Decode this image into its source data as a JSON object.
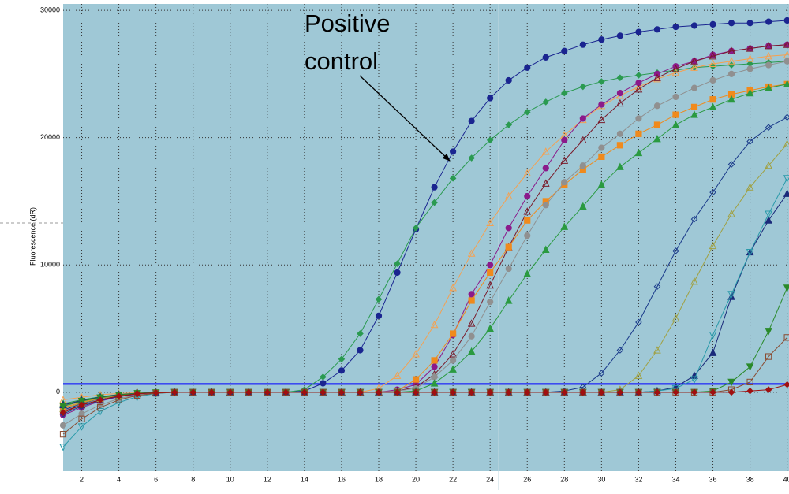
{
  "chart_data": {
    "type": "line",
    "ylabel": "Fluorescence (dR)",
    "annotation": [
      "Positive",
      "control"
    ],
    "x": [
      1,
      2,
      3,
      4,
      5,
      6,
      7,
      8,
      9,
      10,
      11,
      12,
      13,
      14,
      15,
      16,
      17,
      18,
      19,
      20,
      21,
      22,
      23,
      24,
      25,
      26,
      27,
      28,
      29,
      30,
      31,
      32,
      33,
      34,
      35,
      36,
      37,
      38,
      39,
      40
    ],
    "xlim": [
      1,
      40.1
    ],
    "xticks": [
      2,
      4,
      6,
      8,
      10,
      12,
      14,
      16,
      18,
      20,
      22,
      24,
      26,
      28,
      30,
      32,
      34,
      36,
      38,
      40
    ],
    "ylim": [
      -6200,
      30500
    ],
    "yticks": [
      0,
      10000,
      20000,
      30000
    ],
    "grid": true,
    "threshold": 650,
    "threshold_color": "#0000ff",
    "series": [
      {
        "color": "#1a2590",
        "marker": "circle",
        "filled": true,
        "values": [
          -1400,
          -900,
          -500,
          -250,
          -100,
          -30,
          0,
          0,
          0,
          0,
          0,
          0,
          0,
          100,
          700,
          1700,
          3300,
          6000,
          9400,
          12800,
          16100,
          18900,
          21300,
          23100,
          24500,
          25500,
          26300,
          26800,
          27300,
          27700,
          28000,
          28300,
          28500,
          28700,
          28800,
          28900,
          29000,
          29000,
          29100,
          29200
        ]
      },
      {
        "color": "#2a9a50",
        "marker": "diamond",
        "filled": true,
        "values": [
          -1000,
          -700,
          -400,
          -200,
          -80,
          -20,
          0,
          0,
          0,
          0,
          0,
          0,
          0,
          200,
          1200,
          2600,
          4600,
          7300,
          10100,
          12900,
          14900,
          16800,
          18400,
          19800,
          21000,
          22000,
          22800,
          23500,
          24000,
          24400,
          24700,
          24900,
          25100,
          25300,
          25500,
          25600,
          25700,
          25800,
          25900,
          26000
        ]
      },
      {
        "color": "#f5a050",
        "marker": "triangle",
        "filled": false,
        "values": [
          -600,
          -400,
          -200,
          -100,
          -40,
          0,
          0,
          0,
          0,
          0,
          0,
          0,
          0,
          0,
          0,
          0,
          0,
          300,
          1300,
          3000,
          5300,
          8200,
          10900,
          13300,
          15400,
          17200,
          18900,
          20200,
          21400,
          22500,
          23300,
          24000,
          24600,
          25100,
          25500,
          25800,
          26000,
          26200,
          26400,
          26500
        ]
      },
      {
        "color": "#8b1a8b",
        "marker": "circle",
        "filled": true,
        "values": [
          -1800,
          -1200,
          -700,
          -350,
          -150,
          -50,
          0,
          0,
          0,
          0,
          0,
          0,
          0,
          0,
          0,
          0,
          0,
          0,
          200,
          600,
          2000,
          4500,
          7700,
          10000,
          12900,
          15400,
          17600,
          19800,
          21500,
          22600,
          23500,
          24300,
          25000,
          25600,
          26000,
          26500,
          26800,
          27000,
          27200,
          27300
        ]
      },
      {
        "color": "#7a1a2a",
        "marker": "triangle",
        "filled": false,
        "values": [
          -1500,
          -1000,
          -600,
          -300,
          -120,
          -40,
          0,
          0,
          0,
          0,
          0,
          0,
          0,
          0,
          0,
          0,
          0,
          0,
          100,
          400,
          1400,
          3000,
          5400,
          8400,
          11400,
          14200,
          16400,
          18200,
          19800,
          21400,
          22700,
          23800,
          24700,
          25400,
          26000,
          26400,
          26800,
          27000,
          27200,
          27300
        ]
      },
      {
        "color": "#f08a1c",
        "marker": "square",
        "filled": true,
        "values": [
          -1200,
          -800,
          -450,
          -220,
          -90,
          -30,
          0,
          0,
          0,
          0,
          0,
          0,
          0,
          0,
          0,
          0,
          0,
          0,
          100,
          1000,
          2500,
          4600,
          7200,
          9400,
          11400,
          13500,
          15000,
          16300,
          17500,
          18500,
          19400,
          20300,
          21000,
          21800,
          22400,
          23000,
          23400,
          23700,
          24000,
          24200
        ]
      },
      {
        "color": "#909090",
        "marker": "circle",
        "filled": true,
        "values": [
          -2600,
          -1700,
          -1000,
          -500,
          -200,
          -60,
          0,
          0,
          0,
          0,
          0,
          0,
          0,
          0,
          0,
          0,
          0,
          0,
          100,
          300,
          1200,
          2500,
          4400,
          7100,
          9700,
          12300,
          14700,
          16500,
          17800,
          19200,
          20300,
          21500,
          22500,
          23200,
          23900,
          24500,
          25000,
          25400,
          25700,
          26000
        ]
      },
      {
        "color": "#2a9a40",
        "marker": "triangle",
        "filled": true,
        "values": [
          -900,
          -600,
          -350,
          -170,
          -70,
          -20,
          0,
          0,
          0,
          0,
          0,
          0,
          0,
          0,
          0,
          0,
          0,
          0,
          0,
          100,
          700,
          1800,
          3200,
          5000,
          7200,
          9300,
          11200,
          13000,
          14600,
          16300,
          17700,
          18800,
          19900,
          21000,
          21800,
          22400,
          23000,
          23500,
          23900,
          24200
        ]
      },
      {
        "color": "#1a3a8a",
        "marker": "diamond",
        "filled": false,
        "values": [
          -1700,
          -1100,
          -650,
          -330,
          -130,
          -40,
          0,
          0,
          0,
          0,
          0,
          0,
          0,
          0,
          0,
          0,
          0,
          0,
          0,
          0,
          0,
          0,
          0,
          0,
          0,
          0,
          0,
          100,
          400,
          1500,
          3300,
          5500,
          8300,
          11100,
          13600,
          15700,
          17900,
          19700,
          20800,
          21600
        ]
      },
      {
        "color": "#a0a040",
        "marker": "triangle",
        "filled": false,
        "values": [
          -1300,
          -850,
          -500,
          -250,
          -100,
          -30,
          0,
          0,
          0,
          0,
          0,
          0,
          0,
          0,
          0,
          0,
          0,
          0,
          0,
          0,
          0,
          0,
          0,
          0,
          0,
          0,
          0,
          0,
          0,
          0,
          200,
          1300,
          3300,
          5800,
          8700,
          11500,
          14000,
          16100,
          17800,
          19500
        ]
      },
      {
        "color": "#1a2a7a",
        "marker": "triangle",
        "filled": true,
        "values": [
          -1000,
          -650,
          -380,
          -190,
          -80,
          -20,
          0,
          0,
          0,
          0,
          0,
          0,
          0,
          0,
          0,
          0,
          0,
          0,
          0,
          0,
          0,
          0,
          0,
          0,
          0,
          0,
          0,
          0,
          0,
          0,
          0,
          0,
          100,
          400,
          1300,
          3100,
          7500,
          11000,
          13500,
          15600
        ]
      },
      {
        "color": "#2a9aaa",
        "marker": "triangle-down",
        "filled": false,
        "values": [
          -4300,
          -2700,
          -1500,
          -800,
          -350,
          -100,
          0,
          0,
          0,
          0,
          0,
          0,
          0,
          0,
          0,
          0,
          0,
          0,
          0,
          0,
          0,
          0,
          0,
          0,
          0,
          0,
          0,
          0,
          0,
          0,
          0,
          0,
          100,
          300,
          1000,
          4500,
          7700,
          11000,
          14000,
          16800
        ]
      },
      {
        "color": "#2a8a2a",
        "marker": "triangle-down",
        "filled": true,
        "values": [
          -1100,
          -700,
          -420,
          -210,
          -90,
          -30,
          0,
          0,
          0,
          0,
          0,
          0,
          0,
          0,
          0,
          0,
          0,
          0,
          0,
          0,
          0,
          0,
          0,
          0,
          0,
          0,
          0,
          0,
          0,
          0,
          0,
          0,
          0,
          0,
          0,
          100,
          800,
          2000,
          4800,
          8200
        ]
      },
      {
        "color": "#8a4a30",
        "marker": "square",
        "filled": false,
        "values": [
          -3300,
          -2100,
          -1200,
          -600,
          -250,
          -80,
          0,
          0,
          0,
          0,
          0,
          0,
          0,
          0,
          0,
          0,
          0,
          0,
          0,
          0,
          0,
          0,
          0,
          0,
          0,
          0,
          0,
          0,
          0,
          0,
          0,
          0,
          0,
          0,
          0,
          0,
          200,
          800,
          2800,
          4300
        ]
      },
      {
        "color": "#a01010",
        "marker": "diamond",
        "filled": true,
        "values": [
          -1600,
          -1000,
          -600,
          -300,
          -120,
          -40,
          0,
          0,
          0,
          0,
          0,
          0,
          0,
          0,
          0,
          0,
          0,
          0,
          0,
          0,
          0,
          0,
          0,
          0,
          0,
          0,
          0,
          0,
          0,
          0,
          0,
          0,
          0,
          0,
          0,
          0,
          0,
          100,
          200,
          600
        ]
      }
    ]
  }
}
